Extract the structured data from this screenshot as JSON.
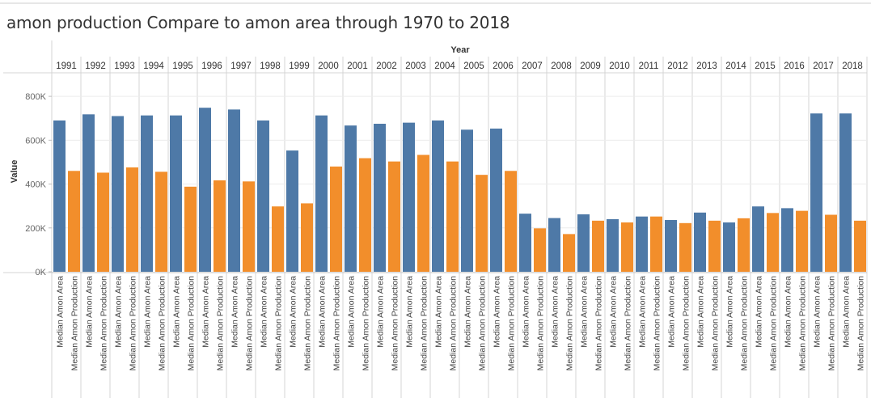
{
  "chart_data": {
    "type": "bar",
    "title": "amon production Compare to amon area through 1970 to 2018",
    "column_header": "Year",
    "ylabel": "Value",
    "ylim": [
      0,
      900000
    ],
    "y_ticks": [
      0,
      200000,
      400000,
      600000,
      800000
    ],
    "y_tick_labels": [
      "0K",
      "200K",
      "400K",
      "600K",
      "800K"
    ],
    "grid": "horizontal",
    "categories": [
      "1991",
      "1992",
      "1993",
      "1994",
      "1995",
      "1996",
      "1997",
      "1998",
      "1999",
      "2000",
      "2001",
      "2002",
      "2003",
      "2004",
      "2005",
      "2006",
      "2007",
      "2008",
      "2009",
      "2010",
      "2011",
      "2012",
      "2013",
      "2014",
      "2015",
      "2016",
      "2017",
      "2018"
    ],
    "series": [
      {
        "name": "Median Amon Area",
        "color": "#4e79a7",
        "values": [
          690000,
          718000,
          710000,
          713000,
          713000,
          748000,
          740000,
          690000,
          553000,
          713000,
          667000,
          675000,
          680000,
          690000,
          648000,
          653000,
          265000,
          245000,
          262000,
          240000,
          252000,
          236000,
          270000,
          225000,
          298000,
          290000,
          722000,
          722000
        ]
      },
      {
        "name": "Median Amon Production",
        "color": "#f28e2b",
        "values": [
          460000,
          452000,
          476000,
          456000,
          388000,
          417000,
          412000,
          298000,
          312000,
          480000,
          518000,
          503000,
          533000,
          503000,
          442000,
          460000,
          198000,
          172000,
          233000,
          225000,
          252000,
          222000,
          233000,
          244000,
          268000,
          278000,
          260000,
          233000
        ]
      }
    ]
  }
}
